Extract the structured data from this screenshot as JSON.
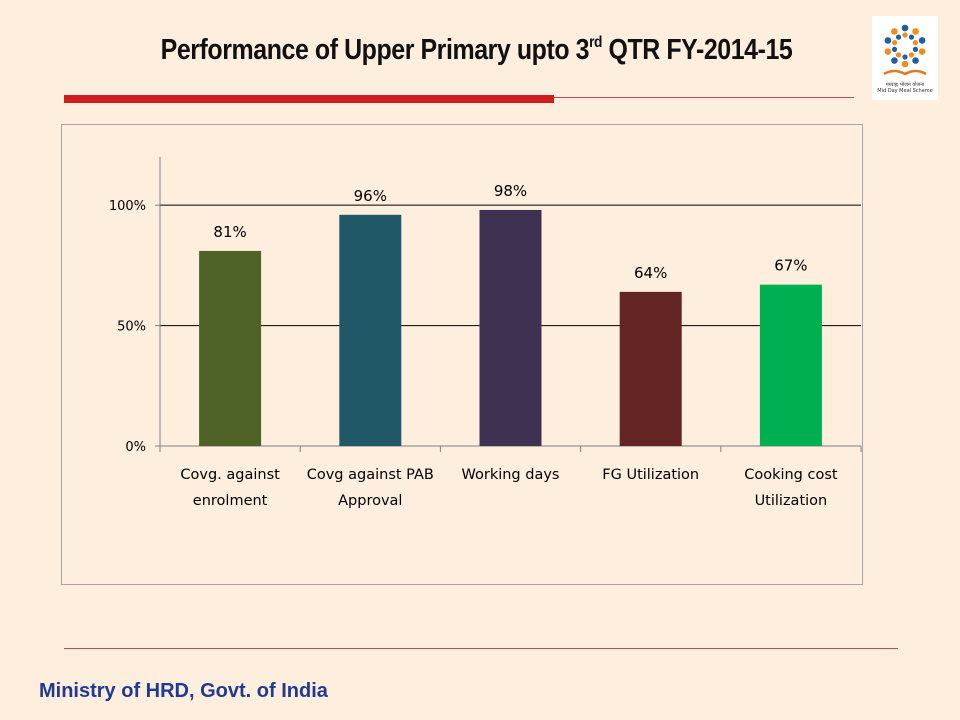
{
  "title": {
    "text_before": "Performance of Upper Primary upto 3",
    "superscript": "rd",
    "text_after": " QTR FY-2014-15"
  },
  "logo": {
    "caption_line1": "मध्याह्न भोजन योजना",
    "caption_line2": "Mid Day Meal Scheme"
  },
  "footer": {
    "text": "Ministry of HRD, Govt. of India"
  },
  "chart_data": {
    "type": "bar",
    "categories": [
      [
        "Covg. against",
        "enrolment"
      ],
      [
        "Covg against PAB",
        "Approval"
      ],
      [
        "Working days"
      ],
      [
        "FG Utilization"
      ],
      [
        "Cooking cost",
        "Utilization"
      ]
    ],
    "values": [
      81,
      96,
      98,
      64,
      67
    ],
    "value_labels": [
      "81%",
      "96%",
      "98%",
      "64%",
      "67%"
    ],
    "colors": [
      "#4f6228",
      "#215868",
      "#3f3151",
      "#632523",
      "#00b050"
    ],
    "yticks": [
      0,
      50,
      100
    ],
    "ytick_labels": [
      "0%",
      "50%",
      "100%"
    ],
    "ylim": [
      0,
      120
    ],
    "grid": true,
    "legend": "none"
  }
}
